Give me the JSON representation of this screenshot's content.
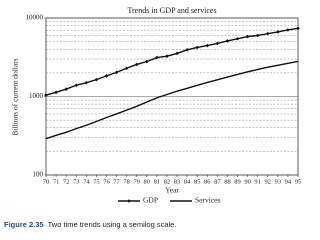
{
  "chart_data": {
    "type": "line",
    "title": "Trends in GDP and services",
    "x_label": "Year",
    "y_label": "Billions of current dollars",
    "categories": [
      "70",
      "71",
      "72",
      "73",
      "74",
      "75",
      "76",
      "77",
      "78",
      "79",
      "80",
      "81",
      "82",
      "83",
      "84",
      "85",
      "86",
      "87",
      "88",
      "89",
      "90",
      "91",
      "92",
      "93",
      "94",
      "95"
    ],
    "series": [
      {
        "name": "GDP",
        "color": "#111111",
        "marker": "diamond",
        "values": [
          1040,
          1130,
          1240,
          1390,
          1500,
          1640,
          1830,
          2030,
          2290,
          2560,
          2790,
          3130,
          3260,
          3540,
          3930,
          4210,
          4450,
          4740,
          5110,
          5440,
          5800,
          5990,
          6320,
          6640,
          7050,
          7400
        ]
      },
      {
        "name": "Services",
        "color": "#111111",
        "marker": "none",
        "values": [
          290,
          320,
          350,
          390,
          430,
          480,
          540,
          600,
          670,
          750,
          850,
          960,
          1060,
          1170,
          1270,
          1390,
          1510,
          1630,
          1770,
          1910,
          2060,
          2210,
          2360,
          2500,
          2650,
          2800
        ]
      }
    ],
    "log_scale": true,
    "ylim": [
      100,
      10000
    ],
    "yticks": [
      100,
      1000,
      10000
    ],
    "minor_yticks": [
      200,
      300,
      400,
      500,
      600,
      700,
      800,
      900,
      2000,
      3000,
      4000,
      5000,
      6000,
      7000,
      8000,
      9000
    ],
    "grid": true,
    "legend": "bottom"
  },
  "caption": {
    "label": "Figure 2.35",
    "text": "Two time trends using a semilog scale."
  }
}
